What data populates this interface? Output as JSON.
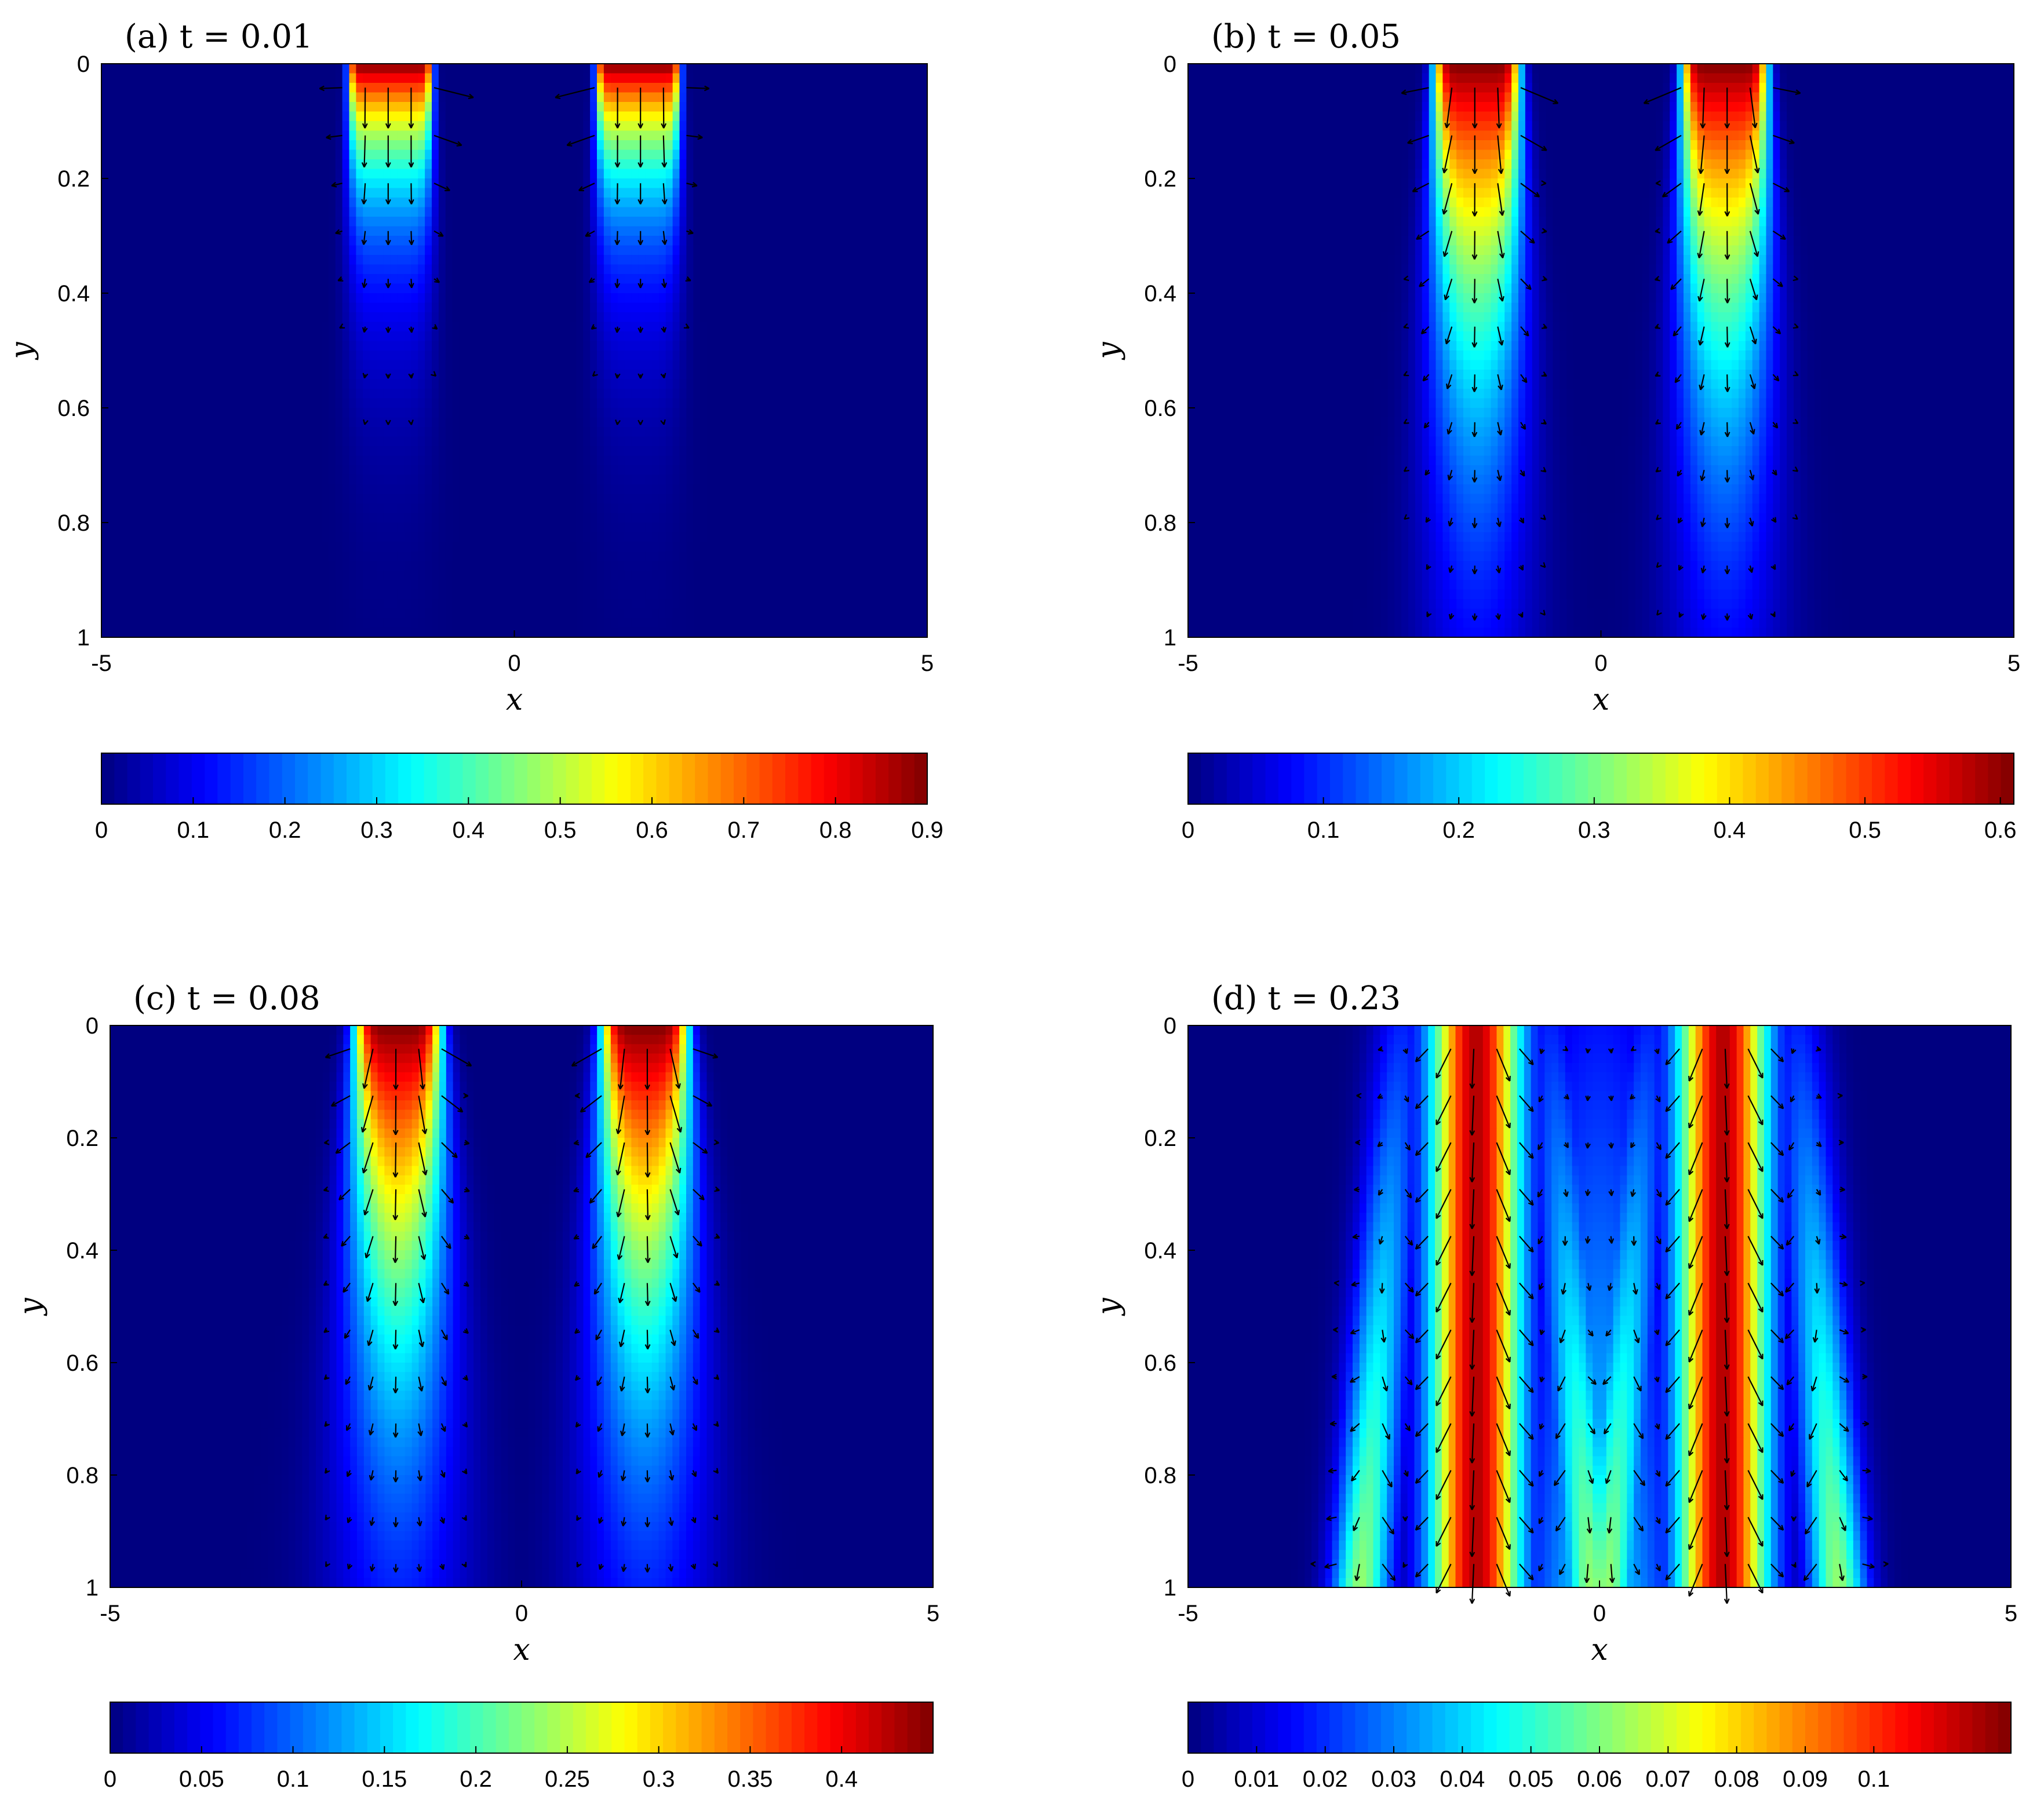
{
  "chart_data": [
    {
      "type": "heatmap",
      "title": "(a) t = 0.01",
      "xlabel": "x",
      "ylabel": "y",
      "xlim": [
        -5,
        5
      ],
      "ylim": [
        0,
        1
      ],
      "y_reversed": true,
      "xticks": [
        "-5",
        "0",
        "5"
      ],
      "yticks": [
        "0",
        "0.2",
        "0.4",
        "0.6",
        "0.8",
        "1"
      ],
      "colormap": "jet",
      "colorbar": {
        "placement": "below",
        "range": [
          0,
          0.9
        ],
        "ticks": [
          "0",
          "0.1",
          "0.2",
          "0.3",
          "0.4",
          "0.5",
          "0.6",
          "0.7",
          "0.8",
          "0.9"
        ]
      },
      "field": {
        "sources_x": [
          -1.5,
          1.5
        ],
        "source_halfwidth": 0.5,
        "peak": 0.9,
        "penetration_depth": 0.2,
        "lateral_spread": 0.25
      },
      "overlay": "velocity vectors (quiver)",
      "grid": false
    },
    {
      "type": "heatmap",
      "title": "(b) t = 0.05",
      "xlabel": "x",
      "ylabel": "y",
      "xlim": [
        -5,
        5
      ],
      "ylim": [
        0,
        1
      ],
      "y_reversed": true,
      "xticks": [
        "-5",
        "0",
        "5"
      ],
      "yticks": [
        "0",
        "0.2",
        "0.4",
        "0.6",
        "0.8",
        "1"
      ],
      "colormap": "jet",
      "colorbar": {
        "placement": "below",
        "range": [
          0,
          0.61
        ],
        "ticks": [
          "0",
          "0.1",
          "0.2",
          "0.3",
          "0.4",
          "0.5",
          "0.6"
        ]
      },
      "field": {
        "sources_x": [
          -1.5,
          1.5
        ],
        "source_halfwidth": 0.5,
        "peak": 0.61,
        "penetration_depth": 0.55,
        "lateral_spread": 0.45
      },
      "overlay": "velocity vectors (quiver)",
      "grid": false
    },
    {
      "type": "heatmap",
      "title": "(c) t = 0.08",
      "xlabel": "x",
      "ylabel": "y",
      "xlim": [
        -5,
        5
      ],
      "ylim": [
        0,
        1
      ],
      "y_reversed": true,
      "xticks": [
        "-5",
        "0",
        "5"
      ],
      "yticks": [
        "0",
        "0.2",
        "0.4",
        "0.6",
        "0.8",
        "1"
      ],
      "colormap": "jet",
      "colorbar": {
        "placement": "below",
        "range": [
          0,
          0.45
        ],
        "ticks": [
          "0",
          "0.05",
          "0.1",
          "0.15",
          "0.2",
          "0.25",
          "0.3",
          "0.35",
          "0.4"
        ]
      },
      "field": {
        "sources_x": [
          -1.5,
          1.5
        ],
        "source_halfwidth": 0.5,
        "peak": 0.45,
        "penetration_depth": 0.7,
        "lateral_spread": 0.6
      },
      "overlay": "velocity vectors (quiver)",
      "grid": false
    },
    {
      "type": "heatmap",
      "title": "(d) t = 0.23",
      "xlabel": "x",
      "ylabel": "y",
      "xlim": [
        -5,
        5
      ],
      "ylim": [
        0,
        1
      ],
      "y_reversed": true,
      "xticks": [
        "-5",
        "0",
        "5"
      ],
      "yticks": [
        "0",
        "0.2",
        "0.4",
        "0.6",
        "0.8",
        "1"
      ],
      "colormap": "jet",
      "colorbar": {
        "placement": "below",
        "range": [
          0,
          0.12
        ],
        "ticks": [
          "0",
          "0.01",
          "0.02",
          "0.03",
          "0.04",
          "0.05",
          "0.06",
          "0.07",
          "0.08",
          "0.09",
          "0.1"
        ]
      },
      "field": {
        "sources_x": [
          -1.5,
          1.5
        ],
        "source_halfwidth": 0.5,
        "peak": 0.12,
        "penetration_depth": 1.0,
        "lateral_spread": 0.9,
        "side_lobes": true
      },
      "overlay": "velocity vectors (quiver)",
      "grid": false
    }
  ]
}
